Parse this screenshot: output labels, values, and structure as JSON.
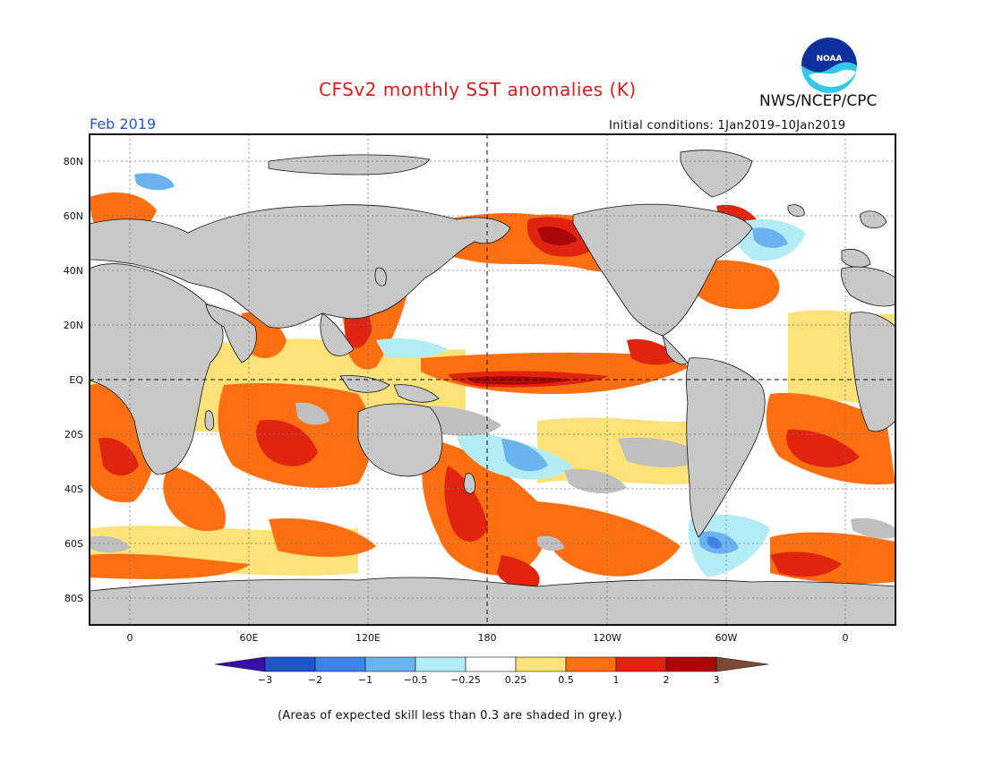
{
  "header": {
    "title": "CFSv2 monthly SST anomalies (K)",
    "organization": "NWS/NCEP/CPC",
    "logo_text": "NOAA",
    "month": "Feb 2019",
    "initial_conditions": "Initial conditions: 1Jan2019–10Jan2019"
  },
  "map": {
    "projection": "equirectangular, centered 180",
    "lat_labels": [
      "80N",
      "60N",
      "40N",
      "20N",
      "EQ",
      "20S",
      "40S",
      "60S",
      "80S"
    ],
    "lon_labels": [
      "0",
      "60E",
      "120E",
      "180",
      "120W",
      "60W",
      "0"
    ],
    "reference_lines": [
      "equator",
      "dateline"
    ],
    "land_color": "#c8c8c8",
    "low_skill_color": "#bfbfbf"
  },
  "colorbar": {
    "tick_labels": [
      "−3",
      "−2",
      "−1",
      "−0.5",
      "−0.25",
      "0.25",
      "0.5",
      "1",
      "2",
      "3"
    ],
    "colors": [
      "#3a0ea8",
      "#1b56cf",
      "#3e84e6",
      "#6ab3f0",
      "#b4ecf5",
      "#ffffff",
      "#fde27a",
      "#fd6f10",
      "#e0240f",
      "#aa0808",
      "#7a4a34"
    ]
  },
  "footnote": "(Areas of expected skill less than 0.3 are shaded in grey.)"
}
